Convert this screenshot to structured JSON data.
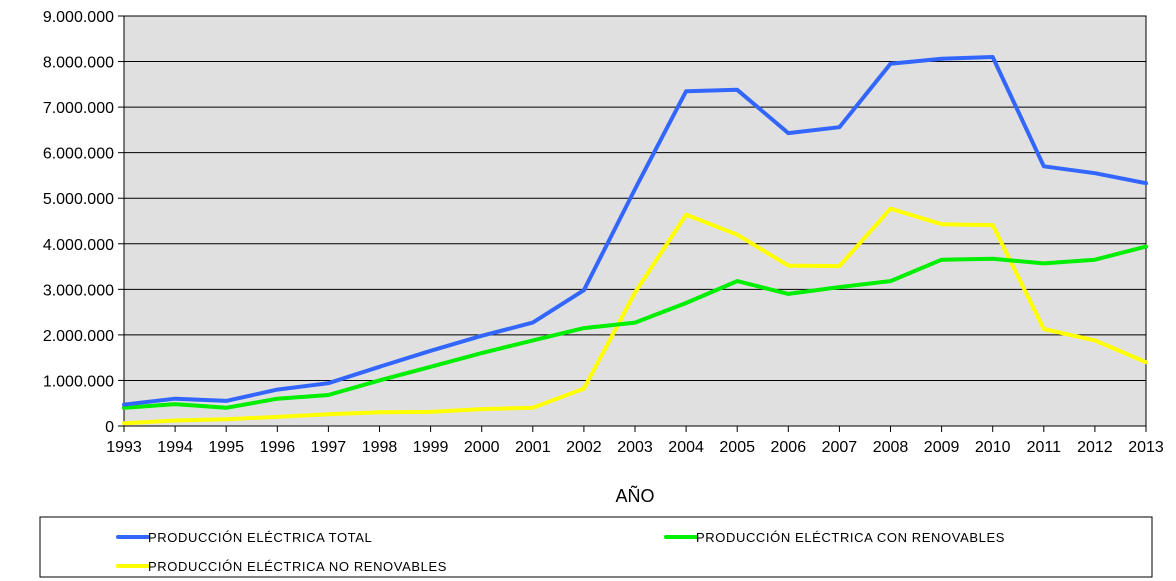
{
  "chart_data": {
    "type": "line",
    "title": "",
    "xlabel": "AÑO",
    "ylabel": "",
    "ylim": [
      0,
      9000000
    ],
    "y_ticks": [
      0,
      1000000,
      2000000,
      3000000,
      4000000,
      5000000,
      6000000,
      7000000,
      8000000,
      9000000
    ],
    "y_tick_labels": [
      "0",
      "1.000.000",
      "2.000.000",
      "3.000.000",
      "4.000.000",
      "5.000.000",
      "6.000.000",
      "7.000.000",
      "8.000.000",
      "9.000.000"
    ],
    "categories": [
      "1993",
      "1994",
      "1995",
      "1996",
      "1997",
      "1998",
      "1999",
      "2000",
      "2001",
      "2002",
      "2003",
      "2004",
      "2005",
      "2006",
      "2007",
      "2008",
      "2009",
      "2010",
      "2011",
      "2012",
      "2013"
    ],
    "grid": true,
    "plot_background": "#e0e0e0",
    "legend_position": "bottom",
    "series": [
      {
        "name": "PRODUCCIÓN ELÉCTRICA TOTAL",
        "color": "#3366ff",
        "values": [
          470000,
          600000,
          550000,
          800000,
          940000,
          1300000,
          1650000,
          1980000,
          2270000,
          2980000,
          5200000,
          7350000,
          7380000,
          6430000,
          6560000,
          7950000,
          8060000,
          8100000,
          5700000,
          5550000,
          5330000
        ]
      },
      {
        "name": "PRODUCCIÓN ELÉCTRICA CON RENOVABLES",
        "color": "#00ee00",
        "values": [
          400000,
          480000,
          400000,
          600000,
          680000,
          1000000,
          1300000,
          1600000,
          1880000,
          2150000,
          2270000,
          2700000,
          3180000,
          2900000,
          3050000,
          3180000,
          3650000,
          3670000,
          3570000,
          3650000,
          3940000
        ]
      },
      {
        "name": "PRODUCCIÓN ELÉCTRICA NO RENOVABLES",
        "color": "#ffff00",
        "values": [
          60000,
          120000,
          150000,
          200000,
          260000,
          300000,
          310000,
          370000,
          400000,
          820000,
          2930000,
          4640000,
          4200000,
          3520000,
          3510000,
          4770000,
          4430000,
          4410000,
          2130000,
          1880000,
          1400000
        ]
      }
    ]
  }
}
